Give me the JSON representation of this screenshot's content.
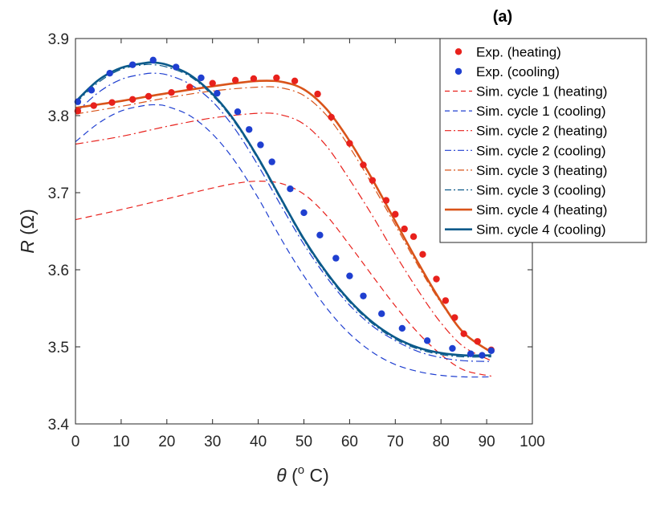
{
  "chart_data": {
    "type": "line",
    "panel_label": "(a)",
    "xlabel": {
      "symbol": "θ",
      "open": " (",
      "superscript": "o",
      "unit": " C)"
    },
    "ylabel": {
      "symbol": "R",
      "unit": " (Ω)"
    },
    "xlim": [
      0,
      100
    ],
    "ylim": [
      3.4,
      3.9
    ],
    "xticks": [
      0,
      10,
      20,
      30,
      40,
      50,
      60,
      70,
      80,
      90,
      100
    ],
    "yticks": [
      3.4,
      3.5,
      3.6,
      3.7,
      3.8,
      3.9
    ],
    "ytick_labels": [
      "3.4",
      "3.5",
      "3.6",
      "3.7",
      "3.8",
      "3.9"
    ],
    "grid": false,
    "legend_position": "top-right",
    "colors": {
      "red": "#e8211c",
      "blue": "#1f3fd0",
      "orange": "#d9541a",
      "darkblue": "#0b5a8a",
      "axis": "#262626"
    },
    "series": [
      {
        "name": "Exp. (heating)",
        "style": "marker",
        "color": "#e8211c",
        "x": [
          0.5,
          4,
          8,
          12.5,
          16,
          21,
          25,
          30,
          35,
          39,
          44,
          48,
          53,
          56,
          60,
          63,
          65,
          68,
          70,
          72,
          74,
          76,
          79,
          81,
          83,
          85,
          88,
          91
        ],
        "y": [
          3.806,
          3.813,
          3.817,
          3.821,
          3.825,
          3.83,
          3.837,
          3.842,
          3.846,
          3.848,
          3.849,
          3.845,
          3.828,
          3.798,
          3.764,
          3.736,
          3.716,
          3.69,
          3.672,
          3.653,
          3.643,
          3.62,
          3.588,
          3.56,
          3.538,
          3.517,
          3.507,
          3.496
        ]
      },
      {
        "name": "Exp. (cooling)",
        "style": "marker",
        "color": "#1f3fd0",
        "x": [
          0.5,
          3.5,
          7.5,
          12.5,
          17,
          22,
          27.5,
          31,
          35.5,
          38,
          40.5,
          43,
          47,
          50,
          53.5,
          57,
          60,
          63,
          67,
          71.5,
          77,
          82.5,
          86.5,
          89,
          91
        ],
        "y": [
          3.818,
          3.833,
          3.855,
          3.866,
          3.872,
          3.863,
          3.849,
          3.829,
          3.805,
          3.782,
          3.762,
          3.74,
          3.705,
          3.674,
          3.645,
          3.615,
          3.592,
          3.566,
          3.543,
          3.524,
          3.508,
          3.498,
          3.491,
          3.489,
          3.495
        ]
      },
      {
        "name": "Sim. cycle 1 (heating)",
        "style": "dashed",
        "color": "#e8211c",
        "width": 1.2,
        "x": [
          0,
          10,
          20,
          30,
          35,
          40,
          45,
          50,
          55,
          60,
          65,
          70,
          75,
          80,
          85,
          91
        ],
        "y": [
          3.665,
          3.678,
          3.692,
          3.706,
          3.712,
          3.715,
          3.712,
          3.698,
          3.67,
          3.632,
          3.592,
          3.553,
          3.518,
          3.49,
          3.47,
          3.462
        ]
      },
      {
        "name": "Sim. cycle 1 (cooling)",
        "style": "dashed",
        "color": "#1f3fd0",
        "width": 1.2,
        "x": [
          0,
          5,
          10,
          15,
          18,
          20,
          25,
          30,
          35,
          40,
          45,
          50,
          55,
          60,
          65,
          70,
          75,
          80,
          85,
          91
        ],
        "y": [
          3.766,
          3.79,
          3.806,
          3.813,
          3.814,
          3.812,
          3.8,
          3.776,
          3.74,
          3.693,
          3.64,
          3.592,
          3.55,
          3.517,
          3.493,
          3.477,
          3.468,
          3.463,
          3.461,
          3.461
        ]
      },
      {
        "name": "Sim. cycle 2 (heating)",
        "style": "dashdot",
        "color": "#e8211c",
        "width": 1.2,
        "x": [
          0,
          10,
          20,
          30,
          40,
          45,
          50,
          55,
          60,
          65,
          70,
          75,
          80,
          85,
          91
        ],
        "y": [
          3.763,
          3.773,
          3.786,
          3.797,
          3.803,
          3.801,
          3.789,
          3.76,
          3.717,
          3.67,
          3.62,
          3.573,
          3.531,
          3.5,
          3.482
        ]
      },
      {
        "name": "Sim. cycle 2 (cooling)",
        "style": "dashdot",
        "color": "#1f3fd0",
        "width": 1.2,
        "x": [
          0,
          5,
          10,
          15,
          17,
          20,
          25,
          30,
          35,
          40,
          45,
          50,
          55,
          60,
          65,
          70,
          75,
          80,
          85,
          91
        ],
        "y": [
          3.803,
          3.83,
          3.847,
          3.854,
          3.855,
          3.853,
          3.841,
          3.818,
          3.782,
          3.735,
          3.683,
          3.633,
          3.59,
          3.554,
          3.527,
          3.508,
          3.494,
          3.486,
          3.482,
          3.481
        ]
      },
      {
        "name": "Sim. cycle 3 (heating)",
        "style": "dashdot",
        "color": "#d9541a",
        "width": 1.2,
        "x": [
          0,
          10,
          20,
          30,
          40,
          45,
          50,
          55,
          60,
          65,
          70,
          75,
          80,
          85,
          91
        ],
        "y": [
          3.802,
          3.812,
          3.823,
          3.832,
          3.837,
          3.836,
          3.826,
          3.8,
          3.759,
          3.71,
          3.658,
          3.605,
          3.557,
          3.518,
          3.494
        ]
      },
      {
        "name": "Sim. cycle 3 (cooling)",
        "style": "dashdot",
        "color": "#0b5a8a",
        "width": 1.2,
        "x": [
          0,
          5,
          10,
          15,
          17,
          20,
          25,
          30,
          35,
          40,
          45,
          50,
          55,
          60,
          65,
          70,
          75,
          80,
          85,
          91
        ],
        "y": [
          3.816,
          3.843,
          3.86,
          3.866,
          3.866,
          3.863,
          3.851,
          3.826,
          3.79,
          3.743,
          3.69,
          3.638,
          3.594,
          3.558,
          3.53,
          3.51,
          3.497,
          3.49,
          3.487,
          3.487
        ]
      },
      {
        "name": "Sim. cycle 4 (heating)",
        "style": "solid",
        "color": "#d9541a",
        "width": 2.6,
        "x": [
          0,
          10,
          20,
          30,
          35,
          40,
          45,
          50,
          55,
          60,
          65,
          70,
          75,
          80,
          85,
          91
        ],
        "y": [
          3.81,
          3.819,
          3.829,
          3.838,
          3.842,
          3.845,
          3.844,
          3.834,
          3.808,
          3.767,
          3.717,
          3.663,
          3.609,
          3.559,
          3.518,
          3.493
        ]
      },
      {
        "name": "Sim. cycle 4 (cooling)",
        "style": "solid",
        "color": "#0b5a8a",
        "width": 2.6,
        "x": [
          0,
          5,
          10,
          15,
          17,
          20,
          25,
          30,
          35,
          40,
          45,
          50,
          55,
          60,
          65,
          70,
          75,
          80,
          85,
          91
        ],
        "y": [
          3.818,
          3.846,
          3.862,
          3.868,
          3.869,
          3.866,
          3.853,
          3.828,
          3.792,
          3.745,
          3.692,
          3.64,
          3.596,
          3.56,
          3.532,
          3.512,
          3.499,
          3.492,
          3.489,
          3.489
        ]
      }
    ]
  }
}
